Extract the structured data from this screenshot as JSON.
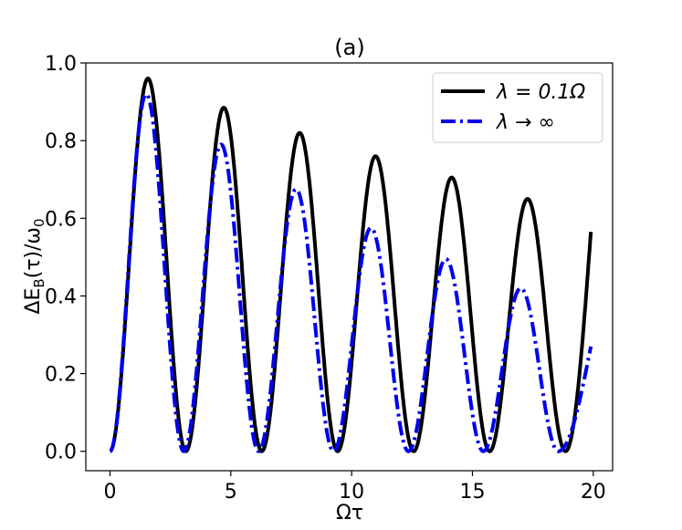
{
  "chart_data": {
    "type": "line",
    "title": "(a)",
    "xlabel": "Ωτ",
    "ylabel": "ΔE_B(τ)/ω_0",
    "xlim": [
      -1,
      20.8
    ],
    "ylim": [
      -0.05,
      1.0
    ],
    "x_ticks": [
      0,
      5,
      10,
      15,
      20
    ],
    "y_ticks": [
      0.0,
      0.2,
      0.4,
      0.6,
      0.8,
      1.0
    ],
    "x_tick_labels": [
      "0",
      "5",
      "10",
      "15",
      "20"
    ],
    "y_tick_labels": [
      "0.0",
      "0.2",
      "0.4",
      "0.6",
      "0.8",
      "1.0"
    ],
    "grid": false,
    "legend_position": "top-right",
    "series": [
      {
        "name": "λ = 0.1Ω",
        "color": "#000000",
        "line_style": "solid",
        "x_range": [
          0,
          19.9
        ],
        "peaks": [
          {
            "x": 1.57,
            "y": 0.96
          },
          {
            "x": 4.71,
            "y": 0.885
          },
          {
            "x": 7.85,
            "y": 0.82
          },
          {
            "x": 10.99,
            "y": 0.76
          },
          {
            "x": 14.14,
            "y": 0.705
          },
          {
            "x": 17.28,
            "y": 0.65
          }
        ],
        "end_value": 0.565
      },
      {
        "name": "λ → ∞",
        "color": "#0000ee",
        "line_style": "dashdot",
        "x_range": [
          0,
          19.9
        ],
        "peaks": [
          {
            "x": 1.5,
            "y": 0.92
          },
          {
            "x": 4.6,
            "y": 0.79
          },
          {
            "x": 7.7,
            "y": 0.675
          },
          {
            "x": 10.8,
            "y": 0.575
          },
          {
            "x": 13.9,
            "y": 0.495
          },
          {
            "x": 17.0,
            "y": 0.42
          }
        ],
        "end_value": 0.27
      }
    ]
  }
}
